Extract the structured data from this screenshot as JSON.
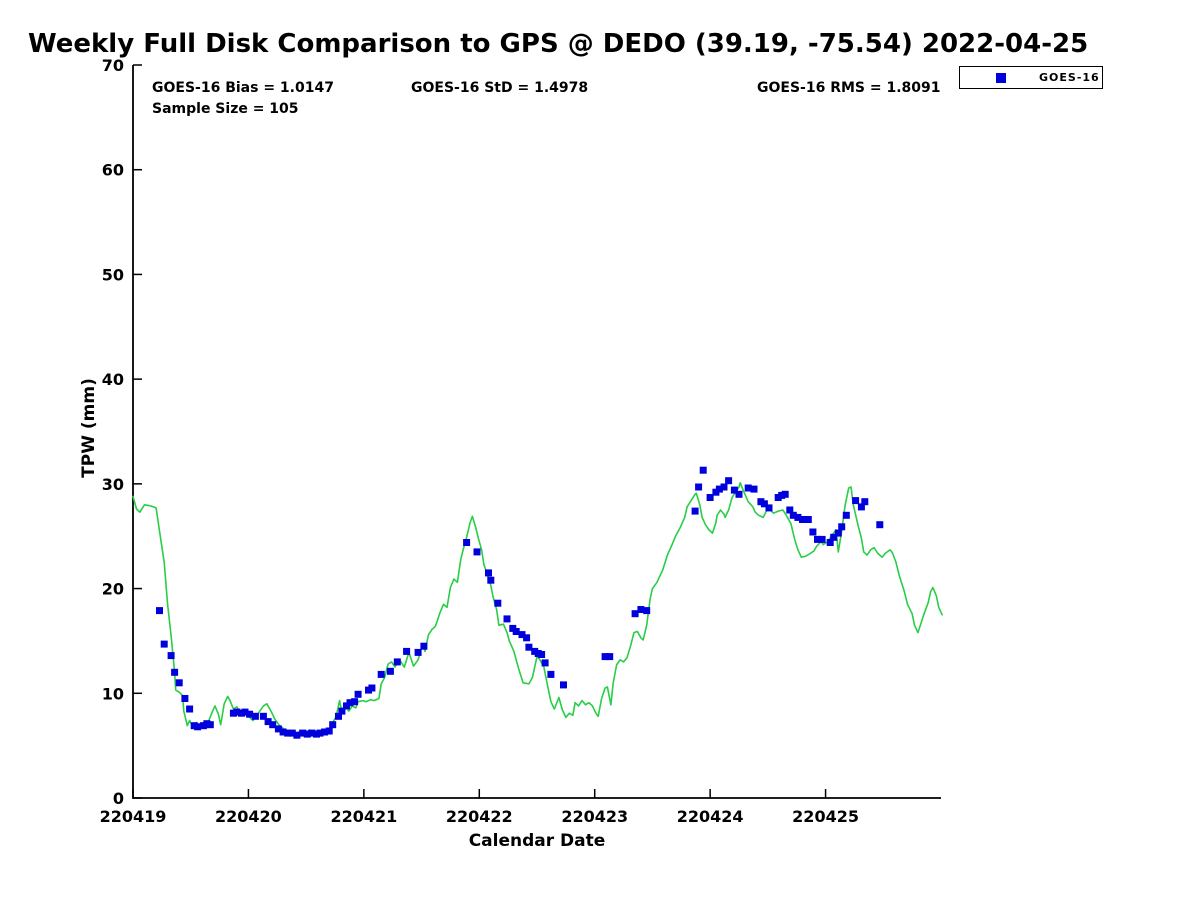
{
  "chart": {
    "title": "Weekly Full Disk Comparison to GPS @ DEDO (39.19, -75.54) 2022-04-25",
    "stats": {
      "bias": "GOES-16 Bias = 1.0147",
      "std": "GOES-16 StD = 1.4978",
      "rms": "GOES-16 RMS = 1.8091",
      "sample_size": "Sample Size = 105"
    },
    "ylabel": "TPW (mm)",
    "xlabel": "Calendar Date",
    "legend_label": "GOES-16"
  },
  "chart_data": {
    "type": "line",
    "title": "Weekly Full Disk Comparison to GPS @ DEDO (39.19, -75.54) 2022-04-25",
    "xlabel": "Calendar Date",
    "ylabel": "TPW (mm)",
    "x_unit": "days since 220419 (YYMMDD calendar dates)",
    "xlim": [
      0,
      7
    ],
    "ylim": [
      0,
      70
    ],
    "x_ticks": [
      0,
      1,
      2,
      3,
      4,
      5,
      6
    ],
    "x_tick_labels": [
      "220419",
      "220420",
      "220421",
      "220422",
      "220423",
      "220424",
      "220425"
    ],
    "y_ticks": [
      0,
      10,
      20,
      30,
      40,
      50,
      60,
      70
    ],
    "grid": false,
    "legend_position": "top-right",
    "annotations": [
      "GOES-16 Bias = 1.0147",
      "GOES-16 StD = 1.4978",
      "GOES-16 RMS = 1.8091",
      "Sample Size = 105"
    ],
    "series": [
      {
        "name": "GPS",
        "type": "line",
        "color": "#28CE46",
        "x": [
          0.0,
          0.03,
          0.06,
          0.1,
          0.15,
          0.2,
          0.23,
          0.27,
          0.3,
          0.33,
          0.36,
          0.37,
          0.4,
          0.43,
          0.44,
          0.47,
          0.49,
          0.52,
          0.55,
          0.58,
          0.62,
          0.65,
          0.69,
          0.71,
          0.74,
          0.76,
          0.79,
          0.82,
          0.84,
          0.87,
          0.9,
          0.94,
          0.97,
          1.01,
          1.04,
          1.08,
          1.13,
          1.16,
          1.2,
          1.23,
          1.27,
          1.32,
          1.36,
          1.41,
          1.45,
          1.48,
          1.53,
          1.56,
          1.6,
          1.63,
          1.67,
          1.7,
          1.73,
          1.76,
          1.79,
          1.81,
          1.85,
          1.87,
          1.9,
          1.93,
          1.95,
          1.99,
          2.02,
          2.06,
          2.09,
          2.13,
          2.15,
          2.18,
          2.21,
          2.24,
          2.27,
          2.31,
          2.35,
          2.39,
          2.43,
          2.47,
          2.51,
          2.53,
          2.56,
          2.59,
          2.62,
          2.66,
          2.69,
          2.72,
          2.75,
          2.78,
          2.81,
          2.84,
          2.86,
          2.89,
          2.92,
          2.94,
          2.97,
          2.99,
          3.02,
          3.04,
          3.07,
          3.1,
          3.12,
          3.15,
          3.17,
          3.21,
          3.24,
          3.26,
          3.3,
          3.34,
          3.38,
          3.43,
          3.46,
          3.5,
          3.52,
          3.56,
          3.59,
          3.62,
          3.65,
          3.69,
          3.72,
          3.75,
          3.78,
          3.81,
          3.83,
          3.86,
          3.89,
          3.92,
          3.95,
          3.98,
          4.01,
          4.03,
          4.06,
          4.09,
          4.11,
          4.14,
          4.16,
          4.19,
          4.22,
          4.25,
          4.28,
          4.31,
          4.34,
          4.37,
          4.4,
          4.42,
          4.45,
          4.48,
          4.5,
          4.54,
          4.59,
          4.63,
          4.67,
          4.7,
          4.74,
          4.78,
          4.8,
          4.84,
          4.87,
          4.88,
          4.91,
          4.93,
          4.96,
          4.99,
          5.02,
          5.05,
          5.06,
          5.09,
          5.12,
          5.13,
          5.16,
          5.19,
          5.22,
          5.25,
          5.26,
          5.29,
          5.33,
          5.37,
          5.39,
          5.42,
          5.46,
          5.5,
          5.52,
          5.55,
          5.59,
          5.63,
          5.66,
          5.7,
          5.73,
          5.76,
          5.79,
          5.83,
          5.86,
          5.9,
          5.92,
          5.96,
          5.98,
          6.02,
          6.05,
          6.09,
          6.11,
          6.14,
          6.17,
          6.2,
          6.22,
          6.24,
          6.28,
          6.31,
          6.33,
          6.36,
          6.39,
          6.42,
          6.45,
          6.49,
          6.52,
          6.56,
          6.58,
          6.61,
          6.64,
          6.68,
          6.71,
          6.75,
          6.77,
          6.8,
          6.83,
          6.85,
          6.89,
          6.91,
          6.93,
          6.96,
          6.98,
          7.01
        ],
        "y": [
          28.8,
          27.6,
          27.3,
          28.0,
          27.9,
          27.7,
          25.5,
          22.5,
          18.5,
          15.5,
          12.0,
          10.3,
          10.1,
          9.8,
          8.3,
          6.9,
          7.4,
          6.7,
          7.2,
          6.9,
          7.3,
          7.2,
          8.3,
          8.8,
          8.0,
          7.0,
          9.0,
          9.7,
          9.3,
          8.5,
          8.7,
          8.0,
          8.4,
          7.7,
          7.4,
          8.0,
          8.8,
          9.0,
          8.2,
          7.5,
          6.9,
          6.5,
          6.3,
          6.1,
          6.4,
          6.1,
          6.5,
          6.1,
          6.4,
          6.2,
          6.3,
          6.6,
          7.2,
          7.8,
          9.3,
          8.2,
          8.6,
          8.3,
          8.8,
          8.6,
          9.2,
          9.3,
          9.2,
          9.4,
          9.3,
          9.5,
          10.9,
          11.5,
          12.8,
          13.0,
          12.5,
          13.2,
          12.5,
          13.9,
          12.6,
          13.2,
          14.7,
          14.0,
          15.6,
          16.1,
          16.4,
          17.7,
          18.5,
          18.2,
          20.1,
          20.9,
          20.6,
          22.8,
          23.7,
          24.9,
          26.3,
          26.9,
          25.8,
          24.9,
          23.7,
          22.3,
          21.3,
          20.3,
          19.2,
          18.0,
          16.5,
          16.6,
          15.8,
          15.0,
          14.0,
          12.4,
          11.0,
          10.9,
          11.5,
          13.5,
          13.3,
          12.5,
          10.8,
          9.2,
          8.5,
          9.6,
          8.4,
          7.7,
          8.1,
          7.9,
          9.1,
          8.8,
          9.3,
          8.9,
          9.1,
          8.8,
          8.1,
          7.8,
          9.5,
          10.5,
          10.6,
          8.9,
          11.0,
          12.7,
          13.2,
          13.0,
          13.4,
          14.5,
          15.8,
          15.9,
          15.3,
          15.1,
          16.5,
          19.0,
          20.0,
          20.6,
          21.8,
          23.2,
          24.2,
          25.0,
          25.8,
          26.8,
          27.8,
          28.5,
          29.0,
          29.1,
          28.0,
          26.8,
          26.1,
          25.6,
          25.3,
          26.3,
          27.0,
          27.5,
          27.1,
          26.8,
          27.5,
          28.7,
          29.2,
          29.7,
          30.1,
          29.3,
          28.3,
          27.8,
          27.3,
          27.0,
          26.8,
          27.7,
          27.5,
          27.2,
          27.4,
          27.5,
          27.0,
          26.2,
          24.8,
          23.7,
          23.0,
          23.1,
          23.3,
          23.6,
          24.0,
          24.5,
          24.2,
          24.5,
          25.0,
          25.6,
          23.5,
          25.5,
          28.0,
          29.6,
          29.7,
          28.0,
          26.1,
          24.8,
          23.5,
          23.2,
          23.7,
          23.9,
          23.4,
          23.0,
          23.4,
          23.7,
          23.4,
          22.5,
          21.2,
          19.8,
          18.5,
          17.6,
          16.5,
          15.8,
          16.8,
          17.5,
          18.7,
          19.7,
          20.1,
          19.3,
          18.2,
          17.5
        ]
      },
      {
        "name": "GOES-16",
        "type": "scatter",
        "marker": "square",
        "color": "#0000DD",
        "x": [
          0.23,
          0.27,
          0.33,
          0.36,
          0.4,
          0.45,
          0.49,
          0.53,
          0.56,
          0.61,
          0.64,
          0.67,
          0.87,
          0.9,
          0.94,
          0.97,
          1.01,
          1.06,
          1.13,
          1.17,
          1.21,
          1.26,
          1.3,
          1.34,
          1.38,
          1.42,
          1.47,
          1.51,
          1.55,
          1.59,
          1.62,
          1.66,
          1.7,
          1.73,
          1.78,
          1.81,
          1.85,
          1.88,
          1.92,
          1.95,
          2.04,
          2.07,
          2.15,
          2.23,
          2.29,
          2.37,
          2.47,
          2.52,
          2.89,
          2.98,
          3.08,
          3.1,
          3.16,
          3.24,
          3.29,
          3.32,
          3.37,
          3.41,
          3.43,
          3.48,
          3.51,
          3.54,
          3.57,
          3.62,
          3.73,
          4.09,
          4.13,
          4.35,
          4.4,
          4.45,
          4.87,
          4.9,
          4.94,
          5.0,
          5.05,
          5.08,
          5.12,
          5.16,
          5.21,
          5.25,
          5.33,
          5.38,
          5.44,
          5.47,
          5.51,
          5.59,
          5.62,
          5.65,
          5.69,
          5.72,
          5.76,
          5.8,
          5.85,
          5.89,
          5.93,
          5.97,
          6.04,
          6.07,
          6.11,
          6.14,
          6.18,
          6.26,
          6.31,
          6.34,
          6.47
        ],
        "y": [
          17.9,
          14.7,
          13.6,
          12.0,
          11.0,
          9.5,
          8.5,
          6.9,
          6.8,
          6.9,
          7.1,
          7.0,
          8.1,
          8.2,
          8.1,
          8.2,
          8.0,
          7.8,
          7.8,
          7.3,
          7.0,
          6.6,
          6.3,
          6.2,
          6.2,
          6.0,
          6.2,
          6.1,
          6.2,
          6.1,
          6.2,
          6.3,
          6.4,
          7.0,
          7.8,
          8.3,
          8.8,
          9.1,
          9.2,
          9.9,
          10.3,
          10.5,
          11.8,
          12.1,
          13.0,
          14.0,
          13.9,
          14.5,
          24.4,
          23.5,
          21.5,
          20.8,
          18.6,
          17.1,
          16.2,
          15.9,
          15.6,
          15.3,
          14.4,
          14.0,
          13.8,
          13.7,
          12.9,
          11.8,
          10.8,
          13.5,
          13.5,
          17.6,
          18.0,
          17.9,
          27.4,
          29.7,
          31.3,
          28.7,
          29.2,
          29.5,
          29.7,
          30.3,
          29.4,
          29.0,
          29.6,
          29.5,
          28.3,
          28.1,
          27.7,
          28.7,
          28.9,
          29.0,
          27.5,
          27.0,
          26.8,
          26.6,
          26.6,
          25.4,
          24.7,
          24.7,
          24.4,
          24.9,
          25.3,
          25.9,
          27.0,
          28.4,
          27.8,
          28.3,
          26.1
        ]
      }
    ]
  }
}
